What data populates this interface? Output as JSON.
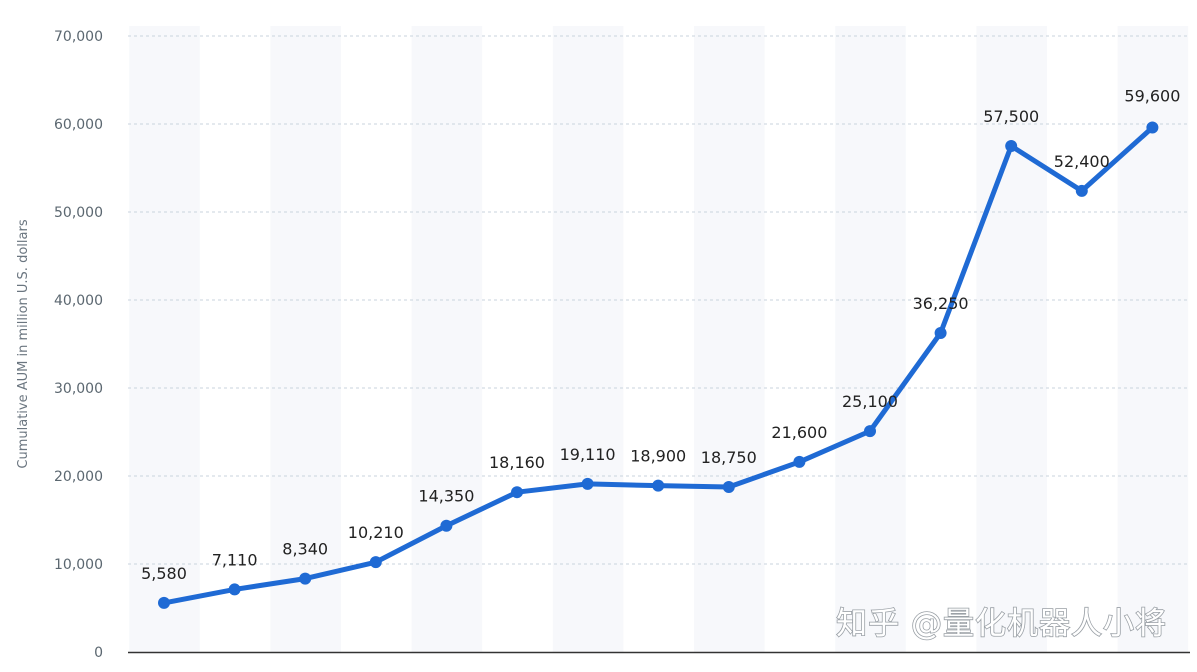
{
  "chart_data": {
    "type": "line",
    "ylabel": "Cumulative AUM in million U.S. dollars",
    "ylim": [
      0,
      70000
    ],
    "y_ticks": [
      0,
      10000,
      20000,
      30000,
      40000,
      50000,
      60000,
      70000
    ],
    "y_tick_labels": [
      "0",
      "10,000",
      "20,000",
      "30,000",
      "40,000",
      "50,000",
      "60,000",
      "70,000"
    ],
    "grid": "horizontal dashed",
    "series": [
      {
        "color": "#1f6ad4",
        "values": [
          5580,
          7110,
          8340,
          10210,
          14350,
          18160,
          19110,
          18900,
          18750,
          21600,
          25100,
          36250,
          57500,
          52400,
          59600
        ],
        "data_labels": [
          "5,580",
          "7,110",
          "8,340",
          "10,210",
          "14,350",
          "18,160",
          "19,110",
          "18,900",
          "18,750",
          "21,600",
          "25,100",
          "36,250",
          "57,500",
          "52,400",
          "59,600"
        ]
      }
    ]
  },
  "watermark": "知乎 @量化机器人小将"
}
